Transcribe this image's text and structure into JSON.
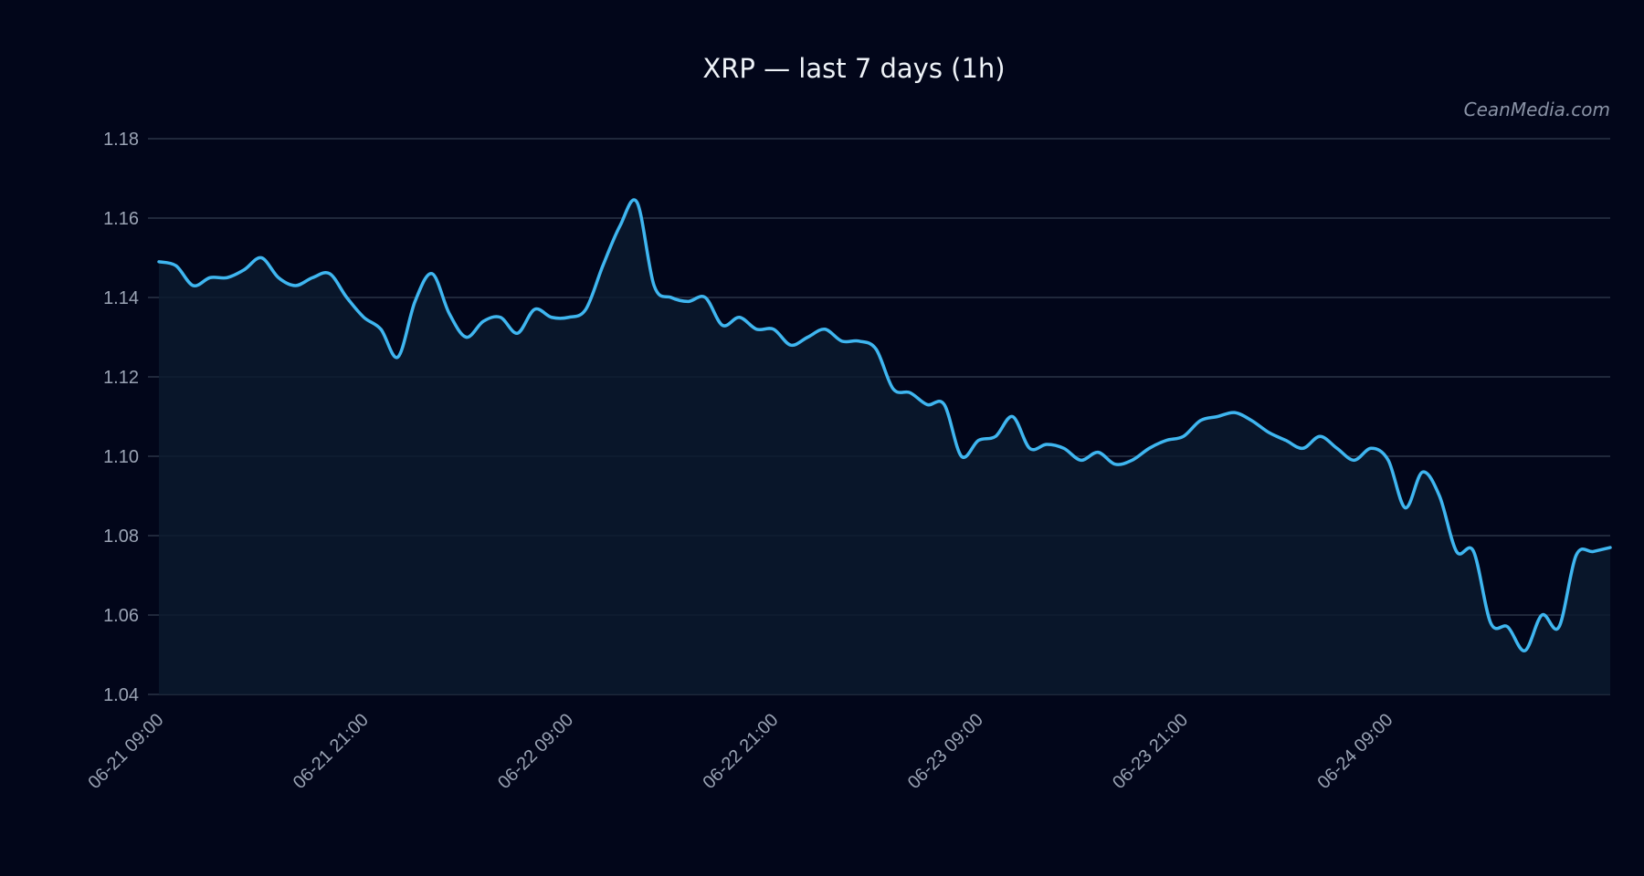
{
  "chart_data": {
    "type": "line",
    "title": "XRP — last 7 days (1h)",
    "watermark": "CeanMedia.com",
    "xlabel": "",
    "ylabel": "",
    "x_start": "06-21 09:00",
    "x_interval_hours": 1,
    "x_ticks": [
      "06-21 09:00",
      "06-21 21:00",
      "06-22 09:00",
      "06-22 21:00",
      "06-23 09:00",
      "06-23 21:00",
      "06-24 09:00"
    ],
    "y_ticks": [
      "1.04",
      "1.06",
      "1.08",
      "1.10",
      "1.12",
      "1.14",
      "1.16",
      "1.18"
    ],
    "ylim": [
      1.04,
      1.18
    ],
    "grid": "horizontal",
    "line_color": "#3fb6f0",
    "series": [
      {
        "values": [
          1.149,
          1.148,
          1.143,
          1.145,
          1.145,
          1.147,
          1.15,
          1.145,
          1.143,
          1.145,
          1.146,
          1.14,
          1.135,
          1.132,
          1.125,
          1.139,
          1.146,
          1.136,
          1.13,
          1.134,
          1.135,
          1.131,
          1.137,
          1.135,
          1.135,
          1.137,
          1.148,
          1.158,
          1.164,
          1.143,
          1.14,
          1.139,
          1.14,
          1.133,
          1.135,
          1.132,
          1.132,
          1.128,
          1.13,
          1.132,
          1.129,
          1.129,
          1.127,
          1.117,
          1.116,
          1.113,
          1.113,
          1.1,
          1.104,
          1.105,
          1.11,
          1.102,
          1.103,
          1.102,
          1.099,
          1.101,
          1.098,
          1.099,
          1.102,
          1.104,
          1.105,
          1.109,
          1.11,
          1.111,
          1.109,
          1.106,
          1.104,
          1.102,
          1.105,
          1.102,
          1.099,
          1.102,
          1.099,
          1.087,
          1.096,
          1.09,
          1.076,
          1.076,
          1.058,
          1.057,
          1.051,
          1.06,
          1.057,
          1.075,
          1.076,
          1.077
        ]
      }
    ]
  }
}
